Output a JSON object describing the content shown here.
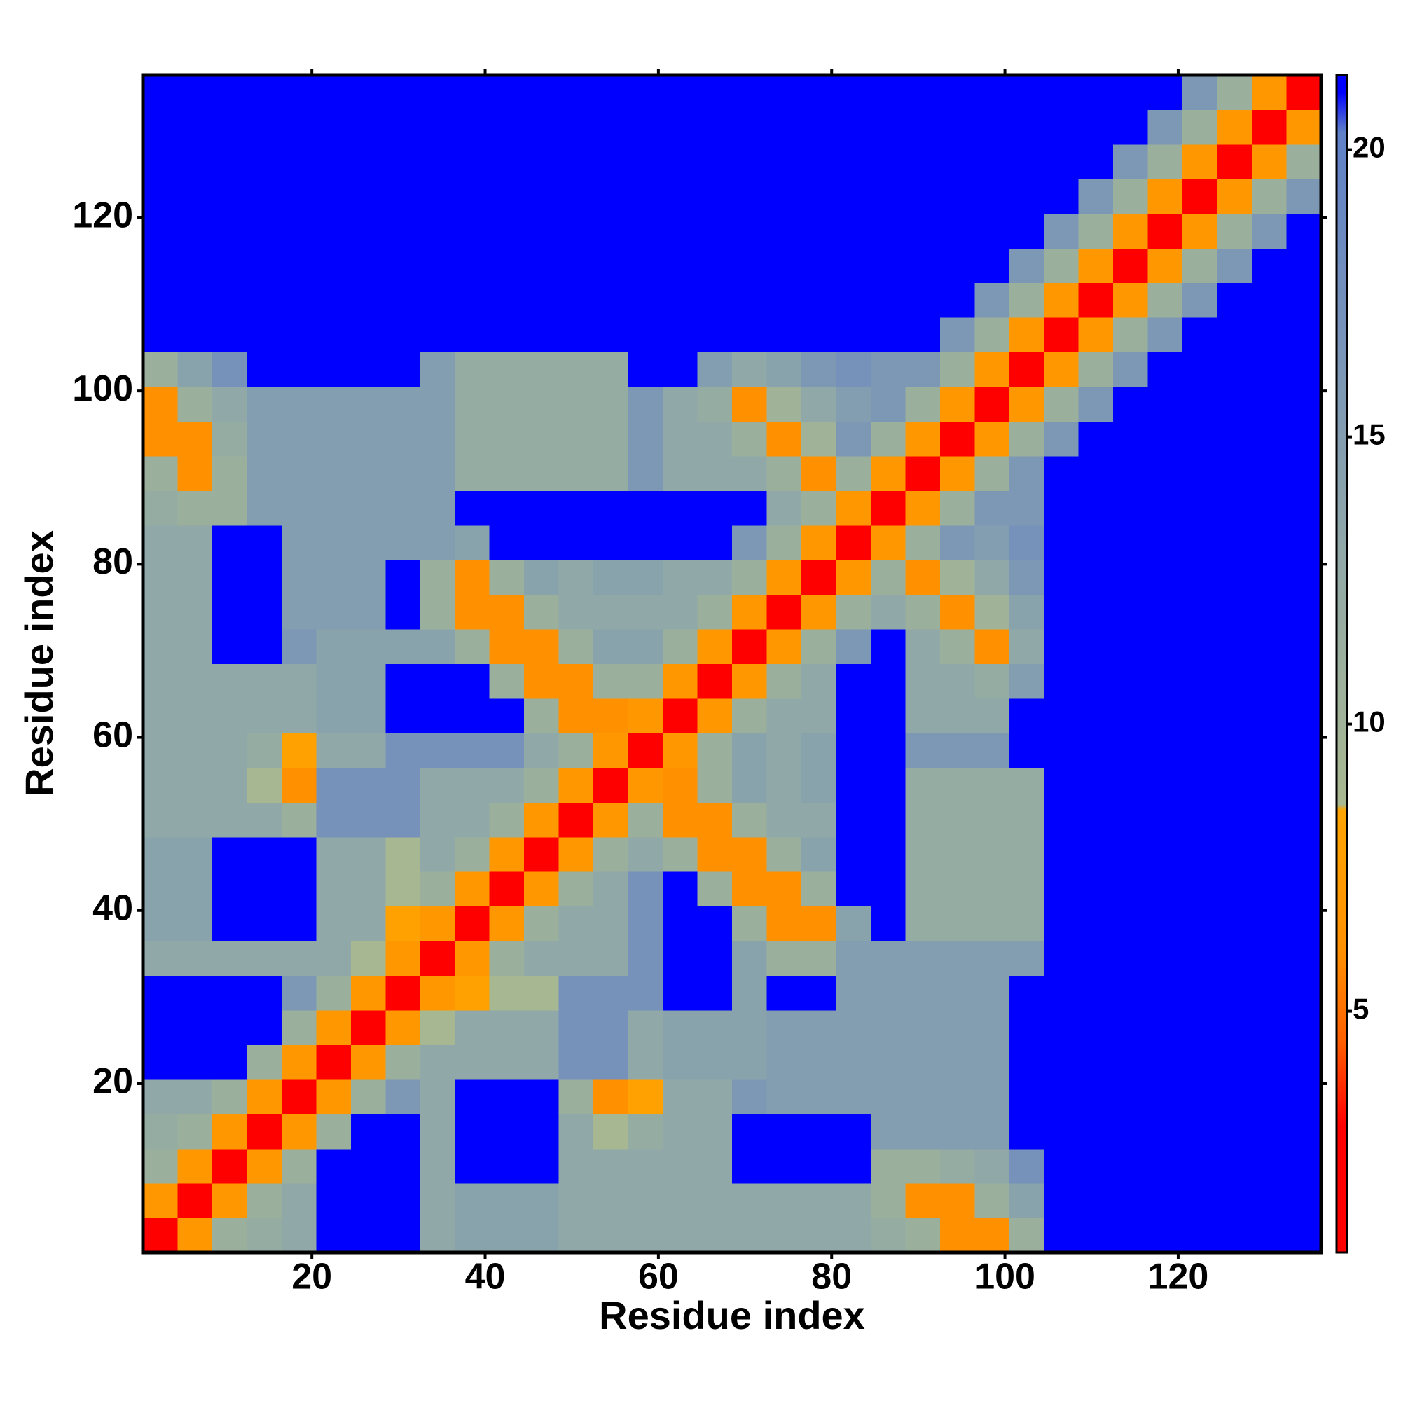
{
  "chart_data": {
    "type": "heatmap",
    "xlabel": "Residue index",
    "ylabel": "Residue index",
    "xlim": [
      0.5,
      136.5
    ],
    "ylim": [
      0.5,
      136.5
    ],
    "xticks": [
      20,
      40,
      60,
      80,
      100,
      120
    ],
    "yticks": [
      20,
      40,
      60,
      80,
      100,
      120
    ],
    "xbins": [
      0.5,
      4.5,
      8.5,
      12.5,
      16.5,
      20.5,
      24.5,
      28.5,
      32.5,
      36.5,
      40.5,
      44.5,
      48.5,
      52.5,
      56.5,
      60.5,
      64.5,
      68.5,
      72.5,
      76.5,
      80.5,
      84.5,
      88.5,
      92.5,
      96.5,
      100.5,
      104.5,
      108.5,
      112.5,
      116.5,
      120.5,
      124.5,
      128.5,
      132.5,
      136.5
    ],
    "ybins": [
      0.5,
      4.5,
      8.5,
      12.5,
      16.5,
      20.5,
      24.5,
      28.5,
      32.5,
      36.5,
      40.5,
      44.5,
      48.5,
      52.5,
      56.5,
      60.5,
      64.5,
      68.5,
      72.5,
      76.5,
      80.5,
      84.5,
      88.5,
      92.5,
      96.5,
      100.5,
      104.5,
      108.5,
      112.5,
      116.5,
      120.5,
      124.5,
      128.5,
      132.5,
      136.5
    ],
    "clim": [
      0.8,
      21.3
    ],
    "cticks": [
      5,
      10,
      15,
      20
    ],
    "colorscale": [
      [
        0.8,
        "#ff0000"
      ],
      [
        3,
        "#ff0000"
      ],
      [
        4.5,
        "#ff6000"
      ],
      [
        6,
        "#ff9000"
      ],
      [
        8.5,
        "#ffa500"
      ],
      [
        8.6,
        "#a8b890"
      ],
      [
        13,
        "#90a8a8"
      ],
      [
        20.3,
        "#6080c8"
      ],
      [
        21,
        "#0000ff"
      ],
      [
        21.3,
        "#0000ff"
      ]
    ],
    "values": [
      [
        3,
        7,
        11,
        12,
        13,
        21,
        21,
        21,
        13,
        14,
        14,
        14,
        13,
        13,
        13,
        13,
        13,
        13,
        13,
        13,
        13,
        12,
        11,
        6,
        6,
        11,
        21,
        21,
        21,
        21,
        21,
        21,
        21,
        21
      ],
      [
        7,
        3,
        7,
        11,
        13,
        21,
        21,
        21,
        13,
        14,
        14,
        14,
        13,
        13,
        13,
        13,
        13,
        13,
        13,
        13,
        13,
        11,
        6,
        6,
        11,
        14,
        21,
        21,
        21,
        21,
        21,
        21,
        21,
        21
      ],
      [
        11,
        7,
        3,
        7,
        11,
        21,
        21,
        21,
        13,
        21,
        21,
        21,
        13,
        13,
        13,
        13,
        13,
        21,
        21,
        21,
        21,
        11,
        11,
        12,
        13,
        17,
        21,
        21,
        21,
        21,
        21,
        21,
        21,
        21
      ],
      [
        12,
        11,
        7,
        3,
        7,
        11,
        21,
        21,
        13,
        21,
        21,
        21,
        13,
        9,
        12,
        13,
        13,
        21,
        21,
        21,
        21,
        15,
        15,
        15,
        15,
        21,
        21,
        21,
        21,
        21,
        21,
        21,
        21,
        21
      ],
      [
        13,
        13,
        11,
        7,
        3,
        7,
        11,
        16,
        13,
        21,
        21,
        21,
        11,
        6,
        8,
        13,
        13,
        16,
        15,
        15,
        15,
        15,
        15,
        15,
        15,
        21,
        21,
        21,
        21,
        21,
        21,
        21,
        21,
        21
      ],
      [
        21,
        21,
        21,
        11,
        7,
        3,
        7,
        11,
        13,
        13,
        13,
        13,
        17,
        17,
        13,
        14,
        14,
        14,
        15,
        15,
        15,
        15,
        15,
        15,
        15,
        21,
        21,
        21,
        21,
        21,
        21,
        21,
        21,
        21
      ],
      [
        21,
        21,
        21,
        21,
        11,
        7,
        3,
        7,
        9,
        13,
        13,
        13,
        17,
        17,
        13,
        14,
        14,
        14,
        15,
        15,
        15,
        15,
        15,
        15,
        15,
        21,
        21,
        21,
        21,
        21,
        21,
        21,
        21,
        21
      ],
      [
        21,
        21,
        21,
        21,
        16,
        11,
        7,
        3,
        7,
        8,
        9,
        9,
        17,
        17,
        17,
        21,
        21,
        14,
        21,
        21,
        15,
        15,
        15,
        15,
        15,
        21,
        21,
        21,
        21,
        21,
        21,
        21,
        21,
        21
      ],
      [
        13,
        13,
        13,
        13,
        13,
        13,
        9,
        7,
        3,
        7,
        11,
        13,
        13,
        13,
        17,
        21,
        21,
        14,
        11,
        11,
        15,
        15,
        15,
        15,
        15,
        15,
        21,
        21,
        21,
        21,
        21,
        21,
        21,
        21
      ],
      [
        14,
        14,
        21,
        21,
        21,
        13,
        13,
        8,
        7,
        3,
        7,
        11,
        13,
        13,
        17,
        21,
        21,
        11,
        6,
        6,
        14,
        21,
        12,
        12,
        12,
        12,
        21,
        21,
        21,
        21,
        21,
        21,
        21,
        21
      ],
      [
        14,
        14,
        21,
        21,
        21,
        13,
        13,
        9,
        11,
        7,
        3,
        7,
        11,
        13,
        17,
        21,
        11,
        6,
        6,
        11,
        21,
        21,
        12,
        12,
        12,
        12,
        21,
        21,
        21,
        21,
        21,
        21,
        21,
        21
      ],
      [
        14,
        14,
        21,
        21,
        21,
        13,
        13,
        9,
        13,
        11,
        7,
        3,
        7,
        11,
        13,
        11,
        6,
        6,
        11,
        14,
        21,
        21,
        12,
        12,
        12,
        12,
        21,
        21,
        21,
        21,
        21,
        21,
        21,
        21
      ],
      [
        13,
        13,
        13,
        13,
        11,
        17,
        17,
        17,
        13,
        13,
        11,
        7,
        3,
        7,
        11,
        6,
        6,
        11,
        13,
        13,
        21,
        21,
        12,
        12,
        12,
        12,
        21,
        21,
        21,
        21,
        21,
        21,
        21,
        21
      ],
      [
        13,
        13,
        13,
        9,
        6,
        17,
        17,
        17,
        13,
        13,
        13,
        11,
        7,
        3,
        7,
        6,
        11,
        14,
        13,
        14,
        21,
        21,
        12,
        12,
        12,
        12,
        21,
        21,
        21,
        21,
        21,
        21,
        21,
        21
      ],
      [
        13,
        13,
        13,
        12,
        8,
        13,
        13,
        17,
        17,
        17,
        17,
        13,
        11,
        7,
        3,
        7,
        11,
        14,
        13,
        14,
        21,
        21,
        16,
        16,
        16,
        21,
        21,
        21,
        21,
        21,
        21,
        21,
        21,
        21
      ],
      [
        13,
        13,
        13,
        13,
        13,
        14,
        14,
        21,
        21,
        21,
        21,
        11,
        6,
        6,
        7,
        3,
        7,
        11,
        13,
        13,
        21,
        21,
        13,
        13,
        13,
        21,
        21,
        21,
        21,
        21,
        21,
        21,
        21,
        21
      ],
      [
        13,
        13,
        13,
        13,
        13,
        14,
        14,
        21,
        21,
        21,
        11,
        6,
        6,
        11,
        11,
        7,
        3,
        7,
        11,
        13,
        21,
        21,
        13,
        13,
        12,
        15,
        21,
        21,
        21,
        21,
        21,
        21,
        21,
        21
      ],
      [
        13,
        13,
        21,
        21,
        16,
        14,
        14,
        14,
        14,
        11,
        6,
        6,
        11,
        14,
        14,
        11,
        7,
        3,
        7,
        11,
        16,
        21,
        13,
        11,
        6,
        13,
        21,
        21,
        21,
        21,
        21,
        21,
        21,
        21
      ],
      [
        13,
        13,
        21,
        21,
        15,
        15,
        15,
        21,
        11,
        6,
        6,
        11,
        13,
        13,
        13,
        13,
        11,
        7,
        3,
        7,
        11,
        13,
        11,
        6,
        10,
        14,
        21,
        21,
        21,
        21,
        21,
        21,
        21,
        21
      ],
      [
        13,
        13,
        21,
        21,
        15,
        15,
        15,
        21,
        11,
        6,
        11,
        14,
        13,
        14,
        14,
        13,
        13,
        11,
        7,
        3,
        7,
        11,
        6,
        10,
        13,
        16,
        21,
        21,
        21,
        21,
        21,
        21,
        21,
        21
      ],
      [
        13,
        13,
        21,
        21,
        15,
        15,
        15,
        15,
        15,
        14,
        21,
        21,
        21,
        21,
        21,
        21,
        21,
        16,
        11,
        7,
        3,
        7,
        11,
        16,
        15,
        17,
        21,
        21,
        21,
        21,
        21,
        21,
        21,
        21
      ],
      [
        12,
        11,
        11,
        15,
        15,
        15,
        15,
        15,
        15,
        21,
        21,
        21,
        21,
        21,
        21,
        21,
        21,
        21,
        13,
        11,
        7,
        3,
        7,
        11,
        16,
        16,
        21,
        21,
        21,
        21,
        21,
        21,
        21,
        21
      ],
      [
        11,
        6,
        11,
        15,
        15,
        15,
        15,
        15,
        15,
        12,
        12,
        12,
        12,
        12,
        16,
        13,
        13,
        13,
        11,
        6,
        11,
        7,
        3,
        7,
        11,
        16,
        21,
        21,
        21,
        21,
        21,
        21,
        21,
        21
      ],
      [
        6,
        6,
        12,
        15,
        15,
        15,
        15,
        15,
        15,
        12,
        12,
        12,
        12,
        12,
        16,
        13,
        13,
        11,
        6,
        10,
        16,
        11,
        7,
        3,
        7,
        11,
        16,
        21,
        21,
        21,
        21,
        21,
        21,
        21
      ],
      [
        6,
        11,
        13,
        15,
        15,
        15,
        15,
        15,
        15,
        12,
        12,
        12,
        12,
        12,
        16,
        13,
        12,
        6,
        10,
        13,
        15,
        16,
        11,
        7,
        3,
        7,
        11,
        16,
        21,
        21,
        21,
        21,
        21,
        21
      ],
      [
        11,
        14,
        17,
        21,
        21,
        21,
        21,
        21,
        15,
        12,
        12,
        12,
        12,
        12,
        21,
        21,
        15,
        13,
        14,
        16,
        17,
        16,
        16,
        11,
        7,
        3,
        7,
        11,
        16,
        21,
        21,
        21,
        21,
        21
      ],
      [
        21,
        21,
        21,
        21,
        21,
        21,
        21,
        21,
        21,
        21,
        21,
        21,
        21,
        21,
        21,
        21,
        21,
        21,
        21,
        21,
        21,
        21,
        21,
        16,
        11,
        7,
        3,
        7,
        11,
        16,
        21,
        21,
        21,
        21
      ],
      [
        21,
        21,
        21,
        21,
        21,
        21,
        21,
        21,
        21,
        21,
        21,
        21,
        21,
        21,
        21,
        21,
        21,
        21,
        21,
        21,
        21,
        21,
        21,
        21,
        16,
        11,
        7,
        3,
        7,
        11,
        16,
        21,
        21,
        21
      ],
      [
        21,
        21,
        21,
        21,
        21,
        21,
        21,
        21,
        21,
        21,
        21,
        21,
        21,
        21,
        21,
        21,
        21,
        21,
        21,
        21,
        21,
        21,
        21,
        21,
        21,
        16,
        11,
        7,
        3,
        7,
        11,
        16,
        21,
        21
      ],
      [
        21,
        21,
        21,
        21,
        21,
        21,
        21,
        21,
        21,
        21,
        21,
        21,
        21,
        21,
        21,
        21,
        21,
        21,
        21,
        21,
        21,
        21,
        21,
        21,
        21,
        21,
        16,
        11,
        7,
        3,
        7,
        11,
        16,
        21
      ],
      [
        21,
        21,
        21,
        21,
        21,
        21,
        21,
        21,
        21,
        21,
        21,
        21,
        21,
        21,
        21,
        21,
        21,
        21,
        21,
        21,
        21,
        21,
        21,
        21,
        21,
        21,
        21,
        16,
        11,
        7,
        3,
        7,
        11,
        16
      ],
      [
        21,
        21,
        21,
        21,
        21,
        21,
        21,
        21,
        21,
        21,
        21,
        21,
        21,
        21,
        21,
        21,
        21,
        21,
        21,
        21,
        21,
        21,
        21,
        21,
        21,
        21,
        21,
        21,
        16,
        11,
        7,
        3,
        7,
        11
      ],
      [
        21,
        21,
        21,
        21,
        21,
        21,
        21,
        21,
        21,
        21,
        21,
        21,
        21,
        21,
        21,
        21,
        21,
        21,
        21,
        21,
        21,
        21,
        21,
        21,
        21,
        21,
        21,
        21,
        21,
        16,
        11,
        7,
        3,
        7
      ],
      [
        21,
        21,
        21,
        21,
        21,
        21,
        21,
        21,
        21,
        21,
        21,
        21,
        21,
        21,
        21,
        21,
        21,
        21,
        21,
        21,
        21,
        21,
        21,
        21,
        21,
        21,
        21,
        21,
        21,
        21,
        16,
        11,
        7,
        3
      ]
    ]
  }
}
